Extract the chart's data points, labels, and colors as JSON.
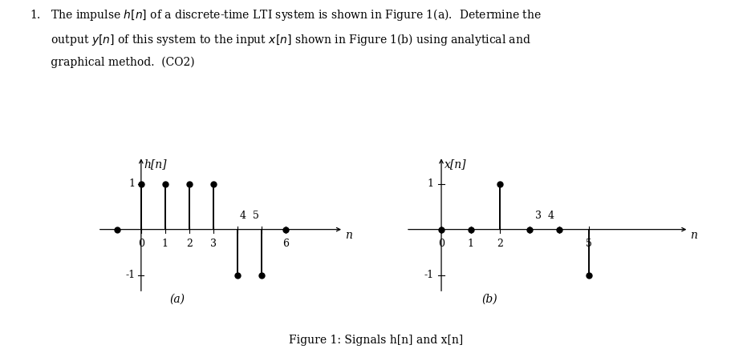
{
  "h_n": {
    "ylabel": "h[n]",
    "xlabel": "n",
    "label_a": "(a)",
    "samples": [
      {
        "n": 0,
        "val": 1
      },
      {
        "n": 1,
        "val": 1
      },
      {
        "n": 2,
        "val": 1
      },
      {
        "n": 3,
        "val": 1
      },
      {
        "n": 4,
        "val": -1
      },
      {
        "n": 5,
        "val": -1
      },
      {
        "n": 6,
        "val": 0
      }
    ],
    "axis_dots": [
      -1,
      6
    ],
    "xmin": -1.8,
    "xmax": 8.5,
    "ymin": -1.7,
    "ymax": 1.7,
    "xtick_positions": [
      0,
      1,
      2,
      3,
      4,
      5,
      6
    ],
    "xtick_labels_below": {
      "0": "0",
      "1": "1",
      "2": "2",
      "3": "3",
      "6": "6"
    },
    "xtick_labels_above": {
      "4": "4  5"
    },
    "yticks": [
      -1,
      1
    ]
  },
  "x_n": {
    "ylabel": "x[n]",
    "xlabel": "n",
    "label_b": "(b)",
    "samples": [
      {
        "n": 0,
        "val": 0
      },
      {
        "n": 1,
        "val": 0
      },
      {
        "n": 2,
        "val": 1
      },
      {
        "n": 3,
        "val": 0
      },
      {
        "n": 4,
        "val": 0
      },
      {
        "n": 5,
        "val": -1
      }
    ],
    "axis_dots": [
      0,
      1,
      3,
      4
    ],
    "xmin": -1.2,
    "xmax": 8.5,
    "ymin": -1.7,
    "ymax": 1.7,
    "xtick_positions": [
      0,
      1,
      2,
      3,
      4,
      5
    ],
    "xtick_labels_below": {
      "0": "0",
      "1": "1",
      "2": "2",
      "5": "5"
    },
    "xtick_labels_above": {
      "3": "3  4"
    },
    "yticks": [
      -1,
      1
    ]
  },
  "figure_caption": "Figure 1: Signals h[n] and x[n]",
  "title_lines": [
    "1.   The impulse $h[n]$ of a discrete-time LTI system is shown in Figure 1(a).  Determine the",
    "      output $y[n]$ of this system to the input $x[n]$ shown in Figure 1(b) using analytical and",
    "      graphical method.  (CO2)"
  ],
  "bg_color": "#ffffff",
  "stem_color": "#000000",
  "dot_color": "#000000",
  "dot_size": 5,
  "stem_lw": 1.4,
  "axis_lw": 0.9,
  "tick_label_fontsize": 9,
  "axis_label_fontsize": 10,
  "caption_fontsize": 10
}
